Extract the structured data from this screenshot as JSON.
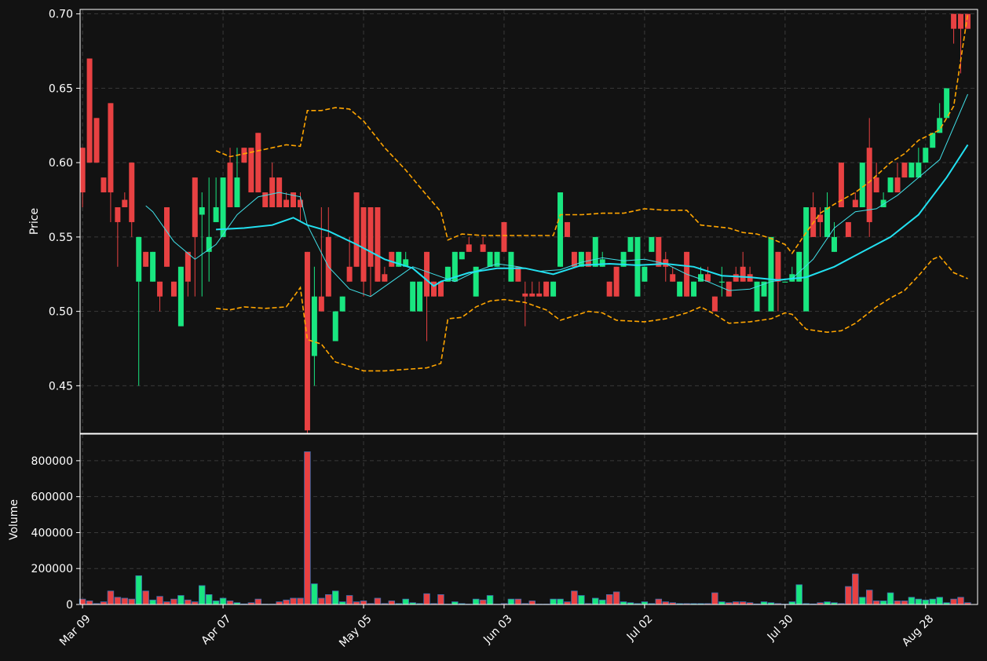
{
  "chart_data": {
    "type": "candlestick",
    "y_label": "Price",
    "volume_label": "Volume",
    "up_color": "#19e680",
    "down_color": "#e84142",
    "volume_edge": "#3d6fb0",
    "grid": true,
    "xlim": [
      -0.35,
      127.4
    ],
    "xticks": [
      {
        "value": 0,
        "label": "Mar 09"
      },
      {
        "value": 20,
        "label": "Apr 07"
      },
      {
        "value": 40,
        "label": "May 05"
      },
      {
        "value": 60,
        "label": "Jun 03"
      },
      {
        "value": 80,
        "label": "Jul 02"
      },
      {
        "value": 100,
        "label": "Jul 30"
      },
      {
        "value": 120,
        "label": "Aug 28"
      }
    ],
    "ylim": [
      0.418,
      0.703
    ],
    "yticks": [
      0.45,
      {
        "value": 0.5,
        "label": "0.50"
      },
      0.55,
      {
        "value": 0.6,
        "label": "0.60"
      },
      0.65,
      {
        "value": 0.7,
        "label": "0.70"
      }
    ],
    "volume_ylim": [
      0,
      948000
    ],
    "volume_yticks": [
      0,
      200000,
      400000,
      600000,
      800000
    ],
    "open": [
      0.61,
      0.67,
      0.63,
      0.59,
      0.64,
      0.57,
      0.575,
      0.6,
      0.52,
      0.54,
      0.52,
      0.52,
      0.57,
      0.52,
      0.49,
      0.54,
      0.59,
      0.565,
      0.54,
      0.56,
      0.55,
      0.6,
      0.57,
      0.61,
      0.61,
      0.62,
      0.58,
      0.59,
      0.59,
      0.575,
      0.58,
      0.575,
      0.54,
      0.47,
      0.51,
      0.55,
      0.48,
      0.5,
      0.53,
      0.58,
      0.57,
      0.57,
      0.57,
      0.525,
      0.54,
      0.53,
      0.53,
      0.5,
      0.5,
      0.54,
      0.52,
      0.52,
      0.52,
      0.52,
      0.535,
      0.545,
      0.51,
      0.545,
      0.53,
      0.53,
      0.56,
      0.52,
      0.53,
      0.512,
      0.512,
      0.512,
      0.52,
      0.51,
      0.53,
      0.56,
      0.54,
      0.53,
      0.54,
      0.53,
      0.53,
      0.52,
      0.53,
      0.53,
      0.54,
      0.51,
      0.52,
      0.54,
      0.55,
      0.535,
      0.525,
      0.51,
      0.54,
      0.51,
      0.52,
      0.525,
      0.51,
      0.52,
      0.52,
      0.525,
      0.53,
      0.525,
      0.5,
      0.51,
      0.5,
      0.54,
      0.52,
      0.52,
      0.52,
      0.5,
      0.57,
      0.565,
      0.55,
      0.54,
      0.6,
      0.56,
      0.575,
      0.57,
      0.61,
      0.59,
      0.57,
      0.58,
      0.59,
      0.6,
      0.59,
      0.59,
      0.6,
      0.61,
      0.62,
      0.63,
      0.7,
      0.7,
      0.7
    ],
    "high": [
      0.61,
      0.67,
      0.63,
      0.59,
      0.64,
      0.57,
      0.58,
      0.6,
      0.55,
      0.54,
      0.54,
      0.52,
      0.57,
      0.52,
      0.53,
      0.54,
      0.59,
      0.58,
      0.59,
      0.59,
      0.59,
      0.61,
      0.61,
      0.61,
      0.61,
      0.62,
      0.58,
      0.6,
      0.59,
      0.58,
      0.58,
      0.58,
      0.54,
      0.53,
      0.57,
      0.57,
      0.5,
      0.51,
      0.55,
      0.58,
      0.57,
      0.57,
      0.57,
      0.53,
      0.54,
      0.54,
      0.54,
      0.52,
      0.52,
      0.54,
      0.52,
      0.52,
      0.53,
      0.54,
      0.54,
      0.55,
      0.53,
      0.55,
      0.54,
      0.54,
      0.56,
      0.54,
      0.53,
      0.52,
      0.52,
      0.52,
      0.52,
      0.52,
      0.58,
      0.56,
      0.54,
      0.54,
      0.54,
      0.55,
      0.54,
      0.52,
      0.53,
      0.54,
      0.55,
      0.55,
      0.53,
      0.55,
      0.55,
      0.54,
      0.53,
      0.52,
      0.54,
      0.52,
      0.53,
      0.53,
      0.51,
      0.53,
      0.52,
      0.53,
      0.54,
      0.53,
      0.52,
      0.52,
      0.55,
      0.54,
      0.52,
      0.53,
      0.54,
      0.57,
      0.58,
      0.57,
      0.58,
      0.56,
      0.6,
      0.56,
      0.58,
      0.6,
      0.63,
      0.6,
      0.58,
      0.59,
      0.6,
      0.6,
      0.6,
      0.61,
      0.61,
      0.62,
      0.64,
      0.65,
      0.7,
      0.7,
      0.7
    ],
    "low": [
      0.57,
      0.6,
      0.6,
      0.58,
      0.56,
      0.53,
      0.57,
      0.55,
      0.45,
      0.53,
      0.52,
      0.5,
      0.53,
      0.51,
      0.49,
      0.51,
      0.51,
      0.51,
      0.52,
      0.56,
      0.55,
      0.57,
      0.57,
      0.6,
      0.58,
      0.58,
      0.57,
      0.57,
      0.57,
      0.57,
      0.57,
      0.56,
      0.418,
      0.45,
      0.5,
      0.51,
      0.48,
      0.5,
      0.52,
      0.53,
      0.51,
      0.51,
      0.52,
      0.52,
      0.53,
      0.53,
      0.53,
      0.5,
      0.5,
      0.48,
      0.51,
      0.51,
      0.52,
      0.52,
      0.535,
      0.54,
      0.51,
      0.54,
      0.53,
      0.53,
      0.54,
      0.52,
      0.52,
      0.49,
      0.51,
      0.51,
      0.51,
      0.51,
      0.53,
      0.55,
      0.53,
      0.53,
      0.53,
      0.53,
      0.53,
      0.51,
      0.51,
      0.53,
      0.54,
      0.51,
      0.52,
      0.54,
      0.53,
      0.52,
      0.52,
      0.51,
      0.51,
      0.51,
      0.52,
      0.52,
      0.5,
      0.51,
      0.51,
      0.52,
      0.52,
      0.52,
      0.5,
      0.51,
      0.5,
      0.5,
      0.52,
      0.52,
      0.52,
      0.5,
      0.55,
      0.55,
      0.55,
      0.54,
      0.57,
      0.55,
      0.57,
      0.57,
      0.55,
      0.58,
      0.57,
      0.58,
      0.58,
      0.59,
      0.59,
      0.59,
      0.6,
      0.61,
      0.62,
      0.63,
      0.68,
      0.66,
      0.69
    ],
    "close": [
      0.58,
      0.6,
      0.6,
      0.58,
      0.58,
      0.56,
      0.57,
      0.56,
      0.55,
      0.53,
      0.54,
      0.51,
      0.53,
      0.51,
      0.53,
      0.52,
      0.55,
      0.57,
      0.55,
      0.57,
      0.59,
      0.57,
      0.59,
      0.6,
      0.58,
      0.58,
      0.57,
      0.57,
      0.57,
      0.57,
      0.57,
      0.57,
      0.42,
      0.51,
      0.5,
      0.51,
      0.5,
      0.51,
      0.52,
      0.53,
      0.52,
      0.53,
      0.52,
      0.52,
      0.53,
      0.54,
      0.535,
      0.52,
      0.52,
      0.51,
      0.51,
      0.51,
      0.53,
      0.54,
      0.54,
      0.54,
      0.53,
      0.54,
      0.54,
      0.54,
      0.54,
      0.54,
      0.52,
      0.51,
      0.51,
      0.51,
      0.51,
      0.52,
      0.58,
      0.55,
      0.53,
      0.54,
      0.53,
      0.55,
      0.535,
      0.51,
      0.51,
      0.54,
      0.55,
      0.55,
      0.53,
      0.55,
      0.53,
      0.53,
      0.52,
      0.52,
      0.51,
      0.52,
      0.525,
      0.52,
      0.5,
      0.52,
      0.51,
      0.52,
      0.52,
      0.52,
      0.52,
      0.52,
      0.55,
      0.52,
      0.52,
      0.525,
      0.54,
      0.57,
      0.55,
      0.56,
      0.57,
      0.55,
      0.57,
      0.55,
      0.57,
      0.6,
      0.56,
      0.58,
      0.575,
      0.59,
      0.58,
      0.59,
      0.6,
      0.6,
      0.61,
      0.62,
      0.63,
      0.65,
      0.69,
      0.69,
      0.69
    ],
    "volume": [
      30000,
      20000,
      5000,
      15000,
      75000,
      40000,
      35000,
      30000,
      160000,
      75000,
      25000,
      45000,
      15000,
      30000,
      50000,
      25000,
      15000,
      105000,
      55000,
      20000,
      35000,
      20000,
      10000,
      3000,
      10000,
      30000,
      2000,
      2000,
      15000,
      25000,
      35000,
      35000,
      850000,
      115000,
      35000,
      55000,
      75000,
      15000,
      50000,
      15000,
      20000,
      5000,
      35000,
      5000,
      20000,
      5000,
      30000,
      10000,
      5000,
      60000,
      5000,
      55000,
      2000,
      15000,
      5000,
      2000,
      30000,
      25000,
      50000,
      2000,
      5000,
      30000,
      30000,
      5000,
      20000,
      2000,
      2000,
      30000,
      30000,
      15000,
      75000,
      50000,
      5000,
      35000,
      25000,
      55000,
      70000,
      15000,
      10000,
      5000,
      15000,
      5000,
      30000,
      15000,
      10000,
      5000,
      5000,
      5000,
      5000,
      5000,
      65000,
      15000,
      10000,
      15000,
      15000,
      10000,
      3000,
      15000,
      10000,
      5000,
      2000,
      15000,
      110000,
      5000,
      3000,
      10000,
      15000,
      10000,
      5000,
      100000,
      170000,
      40000,
      80000,
      20000,
      20000,
      65000,
      20000,
      20000,
      40000,
      30000,
      25000,
      30000,
      40000,
      10000,
      30000,
      40000,
      10000
    ],
    "overlays": [
      {
        "color": "#40e0e8",
        "width": 1,
        "dash": false,
        "x": [
          9,
          10,
          13,
          16,
          19,
          22,
          25,
          28,
          31,
          32,
          35,
          38,
          41,
          44,
          47,
          50,
          53,
          56,
          59,
          62,
          65,
          68,
          71,
          74,
          77,
          80,
          83,
          86,
          89,
          92,
          95,
          98,
          101,
          104,
          107,
          110,
          113,
          116,
          119,
          122,
          126
        ],
        "values": [
          0.571,
          0.567,
          0.547,
          0.535,
          0.545,
          0.565,
          0.577,
          0.58,
          0.577,
          0.558,
          0.53,
          0.515,
          0.51,
          0.52,
          0.53,
          0.525,
          0.52,
          0.527,
          0.532,
          0.53,
          0.527,
          0.528,
          0.533,
          0.536,
          0.534,
          0.535,
          0.532,
          0.525,
          0.52,
          0.514,
          0.515,
          0.52,
          0.522,
          0.535,
          0.556,
          0.567,
          0.569,
          0.578,
          0.59,
          0.602,
          0.646
        ]
      },
      {
        "color": "#22e0f0",
        "width": 2,
        "dash": false,
        "x": [
          19,
          23,
          27,
          30,
          32,
          35,
          39,
          43,
          47,
          50,
          51,
          55,
          59,
          63,
          67,
          71,
          75,
          79,
          83,
          87,
          91,
          95,
          99,
          103,
          107,
          111,
          115,
          119,
          123,
          126
        ],
        "values": [
          0.555,
          0.556,
          0.558,
          0.563,
          0.558,
          0.554,
          0.545,
          0.535,
          0.529,
          0.517,
          0.52,
          0.526,
          0.529,
          0.529,
          0.525,
          0.531,
          0.532,
          0.531,
          0.532,
          0.53,
          0.524,
          0.523,
          0.521,
          0.523,
          0.53,
          0.54,
          0.55,
          0.565,
          0.59,
          0.612
        ]
      },
      {
        "color": "#ffa500",
        "width": 1.6,
        "dash": true,
        "x": [
          19,
          21,
          23,
          26,
          29,
          31,
          32,
          34,
          36,
          38,
          40,
          43,
          46,
          49,
          51,
          52,
          54,
          57,
          60,
          65,
          67,
          68,
          71,
          74,
          77,
          80,
          83,
          86,
          88,
          90,
          92,
          94,
          96,
          98,
          100,
          101,
          103,
          105,
          107,
          110,
          112,
          115,
          117,
          119,
          122,
          124,
          126
        ],
        "values": [
          0.608,
          0.604,
          0.606,
          0.609,
          0.612,
          0.611,
          0.635,
          0.635,
          0.637,
          0.636,
          0.628,
          0.61,
          0.595,
          0.578,
          0.567,
          0.548,
          0.552,
          0.551,
          0.551,
          0.551,
          0.551,
          0.565,
          0.565,
          0.566,
          0.566,
          0.569,
          0.568,
          0.568,
          0.558,
          0.557,
          0.556,
          0.553,
          0.552,
          0.549,
          0.545,
          0.539,
          0.553,
          0.566,
          0.572,
          0.58,
          0.587,
          0.6,
          0.606,
          0.615,
          0.622,
          0.638,
          0.7
        ]
      },
      {
        "color": "#ffa500",
        "width": 1.6,
        "dash": true,
        "x": [
          19,
          21,
          23,
          26,
          29,
          31,
          32,
          34,
          36,
          38,
          40,
          43,
          46,
          49,
          51,
          52,
          54,
          56,
          58,
          60,
          63,
          66,
          68,
          70,
          72,
          74,
          76,
          80,
          83,
          86,
          88,
          90,
          92,
          95,
          98,
          100,
          101,
          103,
          106,
          108,
          110,
          113,
          115,
          117,
          119,
          121,
          122,
          124,
          126
        ],
        "values": [
          0.502,
          0.501,
          0.503,
          0.502,
          0.503,
          0.516,
          0.481,
          0.478,
          0.466,
          0.463,
          0.46,
          0.46,
          0.461,
          0.462,
          0.465,
          0.495,
          0.496,
          0.503,
          0.507,
          0.508,
          0.506,
          0.501,
          0.494,
          0.497,
          0.5,
          0.499,
          0.494,
          0.493,
          0.495,
          0.499,
          0.503,
          0.498,
          0.492,
          0.493,
          0.495,
          0.499,
          0.498,
          0.488,
          0.486,
          0.487,
          0.492,
          0.503,
          0.509,
          0.514,
          0.524,
          0.535,
          0.537,
          0.526,
          0.522
        ]
      }
    ]
  }
}
